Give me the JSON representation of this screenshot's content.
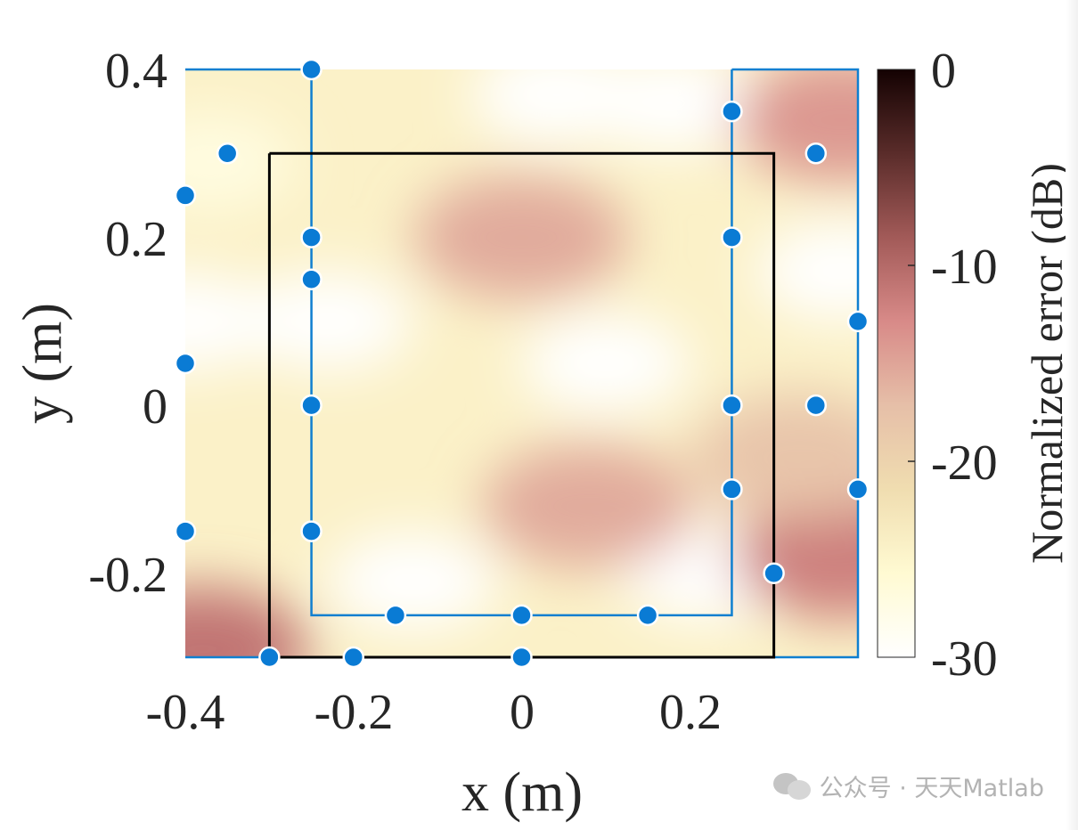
{
  "chart_data": {
    "type": "heatmap",
    "title": "",
    "xlabel": "x (m)",
    "ylabel": "y (m)",
    "xlim": [
      -0.4,
      0.4
    ],
    "ylim": [
      -0.3,
      0.4
    ],
    "xticks": [
      "-0.4",
      "-0.2",
      "0",
      "0.2"
    ],
    "xtick_values": [
      -0.4,
      -0.2,
      0,
      0.2
    ],
    "yticks": [
      "0.4",
      "0.2",
      "0",
      "-0.2"
    ],
    "ytick_values": [
      0.4,
      0.2,
      0,
      -0.2
    ],
    "grid": false,
    "colorbar": {
      "label": "Normalized error (dB)",
      "range": [
        -30,
        0
      ],
      "ticks": [
        "0",
        "-10",
        "-20",
        "-30"
      ],
      "tick_values": [
        0,
        -10,
        -20,
        -30
      ],
      "colormap": [
        "#ffffff",
        "#fffad2",
        "#f0ddb0",
        "#e6bfa8",
        "#d88a88",
        "#a25a58",
        "#5a2c2a",
        "#140202"
      ]
    },
    "heat_blobs": [
      {
        "x": 0.0,
        "y": 0.2,
        "value": -15.5
      },
      {
        "x": 0.08,
        "y": -0.12,
        "value": -15.5
      },
      {
        "x": -0.38,
        "y": -0.29,
        "value": -11
      },
      {
        "x": 0.38,
        "y": -0.18,
        "value": -12
      },
      {
        "x": 0.38,
        "y": 0.34,
        "value": -14
      },
      {
        "x": 0.33,
        "y": -0.06,
        "value": -18
      }
    ],
    "cold_blobs": [
      {
        "x": 0.1,
        "y": 0.05,
        "value": -30
      },
      {
        "x": -0.4,
        "y": 0.1,
        "value": -30
      },
      {
        "x": -0.23,
        "y": 0.1,
        "value": -30
      },
      {
        "x": 0.04,
        "y": 0.37,
        "value": -30
      },
      {
        "x": 0.18,
        "y": 0.36,
        "value": -30
      },
      {
        "x": -0.13,
        "y": -0.21,
        "value": -30
      },
      {
        "x": 0.22,
        "y": -0.2,
        "value": -30
      },
      {
        "x": 0.38,
        "y": 0.16,
        "value": -30
      },
      {
        "x": 0.36,
        "y": -0.07,
        "value": -30
      },
      {
        "x": -0.37,
        "y": 0.29,
        "value": -27
      }
    ],
    "black_square": {
      "x": [
        -0.3,
        0.3,
        0.3,
        -0.3,
        -0.3
      ],
      "y": [
        0.3,
        0.3,
        -0.3,
        -0.3,
        0.3
      ],
      "color": "#000000"
    },
    "blue_paths": [
      {
        "x": [
          -0.4,
          -0.25,
          -0.25,
          0.25,
          0.25
        ],
        "y": [
          0.4,
          0.4,
          -0.25,
          -0.25,
          0.4
        ],
        "color": "#0f7fd0"
      },
      {
        "x": [
          0.25,
          0.4,
          0.4,
          0.3
        ],
        "y": [
          0.4,
          0.4,
          -0.3,
          -0.3
        ],
        "color": "#0f7fd0"
      },
      {
        "x": [
          -0.4,
          -0.3
        ],
        "y": [
          -0.3,
          -0.3
        ],
        "color": "#0f7fd0"
      }
    ],
    "points": {
      "color": "#0a7bd4",
      "x": [
        -0.25,
        -0.35,
        -0.4,
        -0.25,
        -0.25,
        -0.4,
        -0.25,
        -0.4,
        -0.25,
        -0.3,
        -0.2,
        -0.15,
        0,
        0,
        0.15,
        0.25,
        0.25,
        0.25,
        0.25,
        0.35,
        0.35,
        0.4,
        0.4,
        0.3
      ],
      "y": [
        0.4,
        0.3,
        0.25,
        0.2,
        0.15,
        0.05,
        0.0,
        -0.15,
        -0.15,
        -0.3,
        -0.3,
        -0.25,
        -0.25,
        -0.3,
        -0.25,
        0.35,
        0.2,
        0.0,
        -0.1,
        0.3,
        0.0,
        0.1,
        -0.1,
        -0.2
      ]
    }
  },
  "watermark": {
    "text": "公众号 · 天天Matlab"
  }
}
